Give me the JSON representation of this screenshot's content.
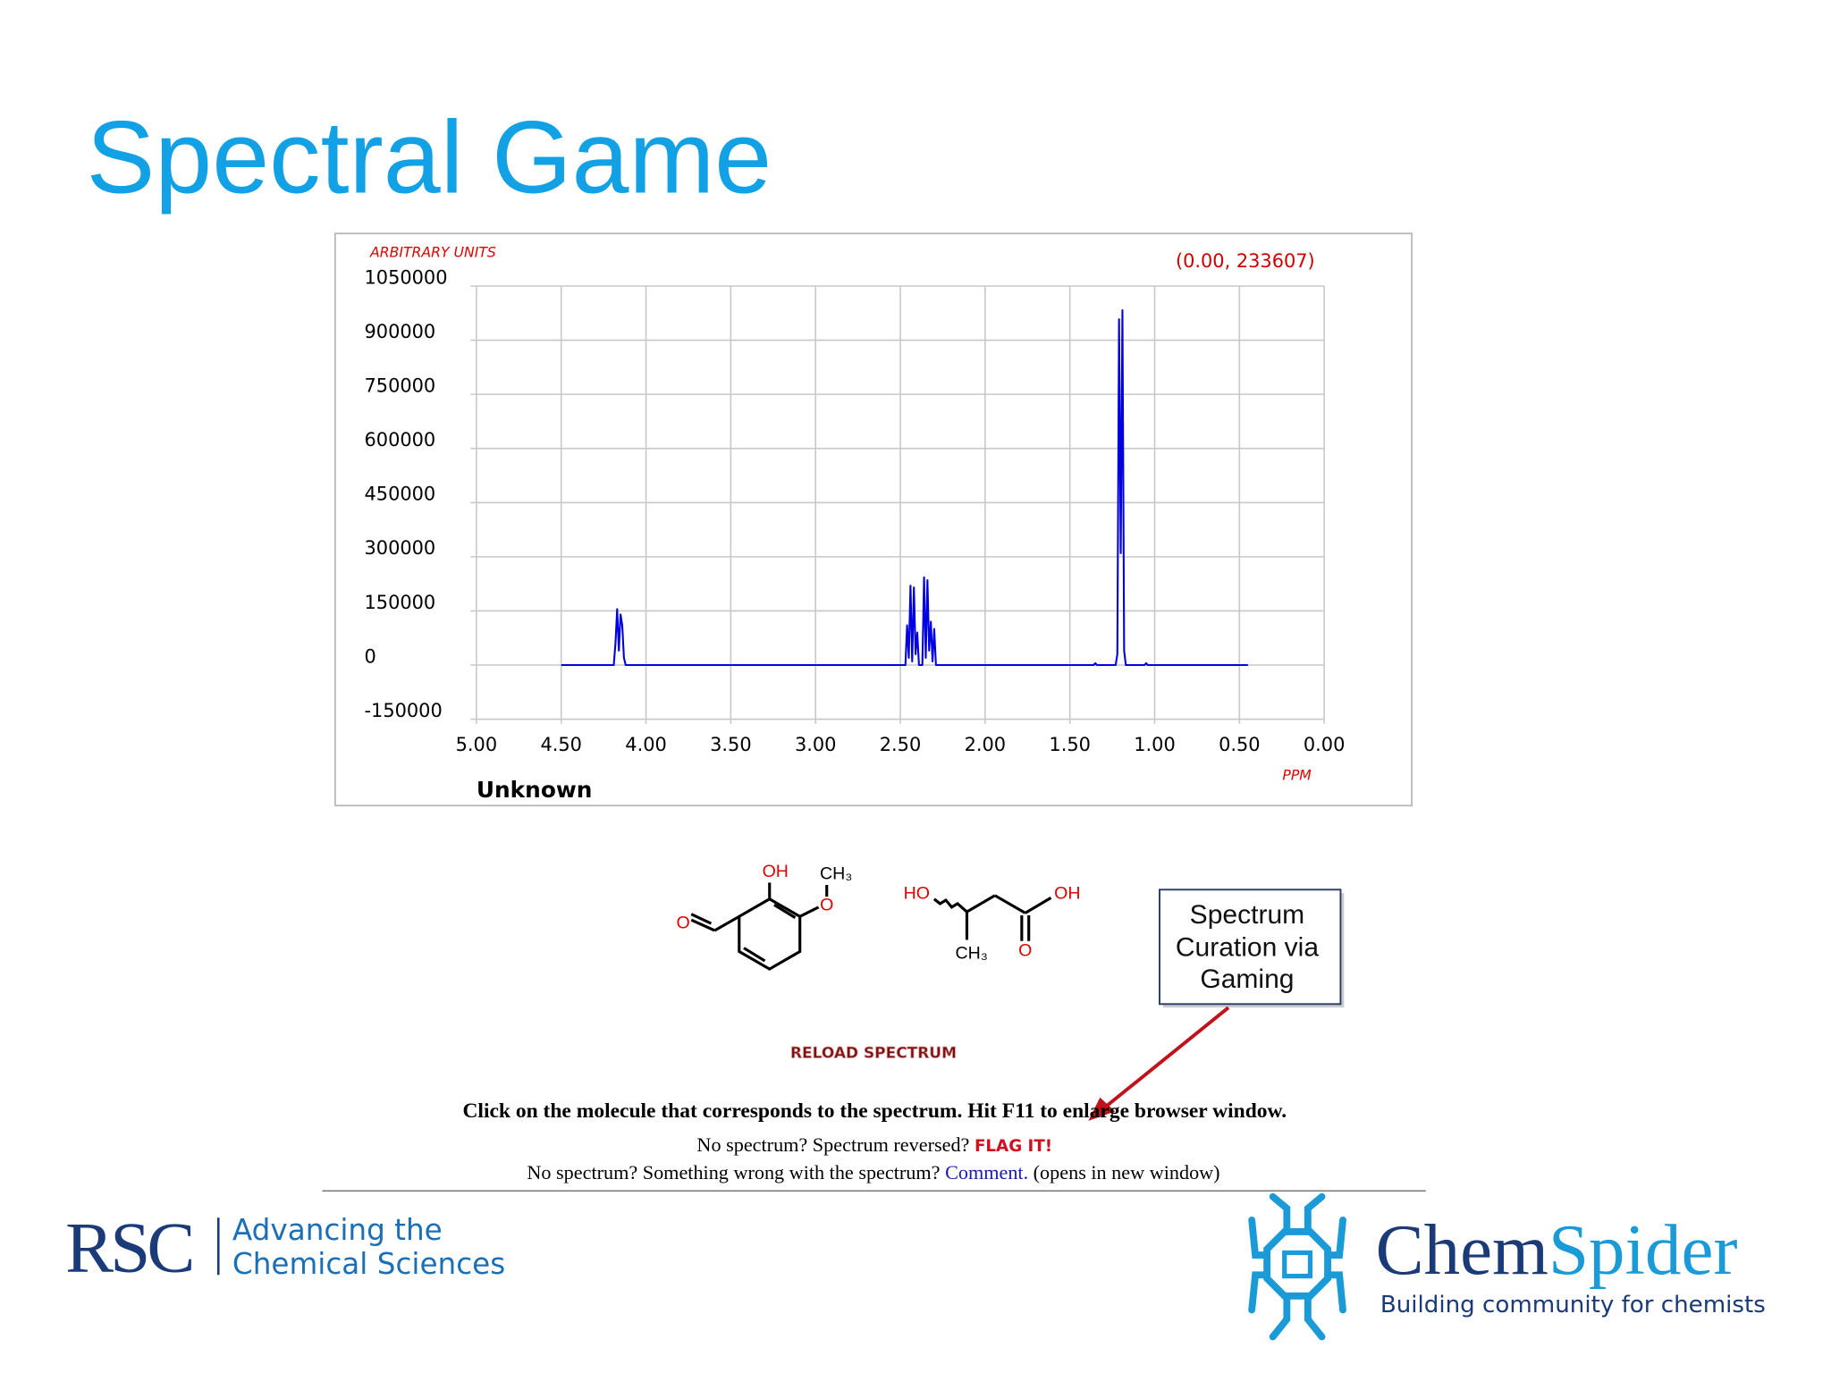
{
  "slide_title": "Spectral Game",
  "chart_data": {
    "type": "line",
    "y_label": "ARBITRARY UNITS",
    "x_label": "PPM",
    "subtitle": "Unknown",
    "coordinate_readout": "(0.00, 233607)",
    "x": [
      4.5,
      4.19,
      4.18,
      4.17,
      4.16,
      4.15,
      4.14,
      4.13,
      4.12,
      2.47,
      2.46,
      2.45,
      2.44,
      2.43,
      2.42,
      2.41,
      2.4,
      2.39,
      2.37,
      2.36,
      2.35,
      2.34,
      2.33,
      2.32,
      2.31,
      2.3,
      2.29,
      1.36,
      1.35,
      1.34,
      1.23,
      1.22,
      1.21,
      1.2,
      1.19,
      1.18,
      1.17,
      1.06,
      1.05,
      1.04,
      0.45
    ],
    "values": [
      0,
      0,
      60000,
      155000,
      40000,
      140000,
      110000,
      20000,
      0,
      0,
      110000,
      20000,
      220000,
      10000,
      215000,
      30000,
      90000,
      0,
      0,
      243000,
      20000,
      235000,
      40000,
      120000,
      10000,
      100000,
      0,
      0,
      5000,
      0,
      0,
      30000,
      958000,
      310000,
      983000,
      40000,
      0,
      0,
      5000,
      0,
      0
    ],
    "color": "#0000e0",
    "xlim": [
      5,
      0
    ],
    "xticks": [
      {
        "value": 5,
        "label": "5.00"
      },
      {
        "value": 4.5,
        "label": "4.50"
      },
      {
        "value": 4,
        "label": "4.00"
      },
      {
        "value": 3.5,
        "label": "3.50"
      },
      {
        "value": 3,
        "label": "3.00"
      },
      {
        "value": 2.5,
        "label": "2.50"
      },
      {
        "value": 2,
        "label": "2.00"
      },
      {
        "value": 1.5,
        "label": "1.50"
      },
      {
        "value": 1,
        "label": "1.00"
      },
      {
        "value": 0.5,
        "label": "0.50"
      },
      {
        "value": 0,
        "label": "0.00"
      }
    ],
    "ylim": [
      -150000,
      1050000
    ],
    "yticks": [
      -150000,
      0,
      150000,
      300000,
      450000,
      600000,
      750000,
      900000,
      1050000
    ],
    "grid": true
  },
  "molecules": [
    {
      "labels": [
        "OH",
        "CH₃",
        "O",
        "O"
      ]
    },
    {
      "labels": [
        "HO",
        "OH",
        "CH₃",
        "O"
      ]
    }
  ],
  "callout": [
    "Spectrum",
    "Curation via",
    "Gaming"
  ],
  "reload_button": "RELOAD SPECTRUM",
  "instruction": "Click on the molecule that corresponds to the spectrum. Hit F11 to enlarge browser window.",
  "flag_line": {
    "text": "No spectrum? Spectrum reversed?",
    "link": "FLAG IT!"
  },
  "comment_line": {
    "text": "No spectrum? Something wrong with the spectrum?",
    "link": "Comment.",
    "after": "(opens in new window)"
  },
  "rsc_logo": {
    "name": "RSC",
    "tagline": [
      "Advancing the",
      "Chemical Sciences"
    ]
  },
  "chemspider_logo": {
    "name_part1": "Chem",
    "name_part2": "Spider",
    "tagline": "Building community for chemists"
  }
}
